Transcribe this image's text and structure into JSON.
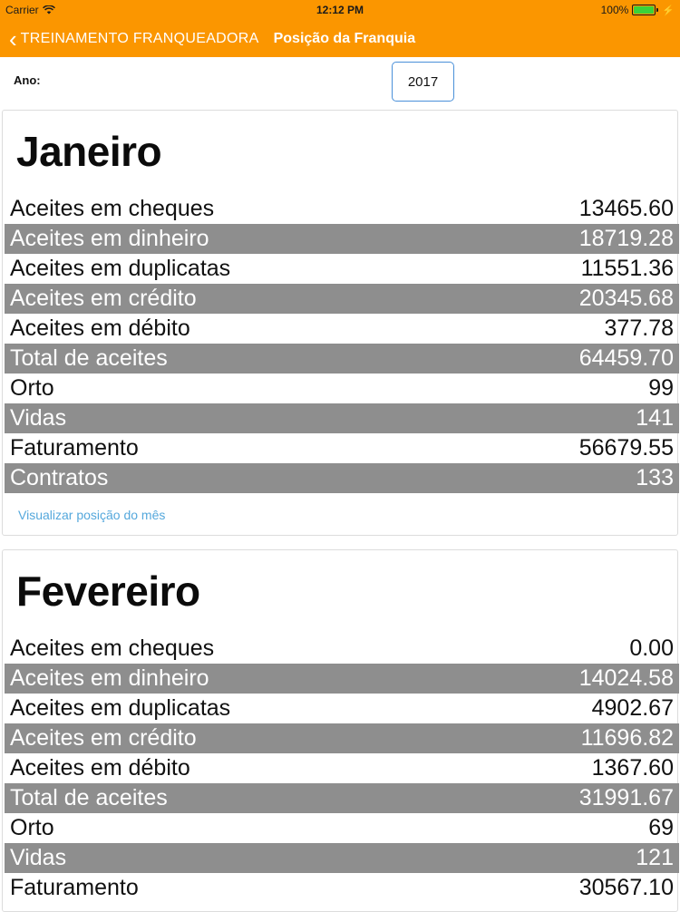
{
  "status": {
    "carrier": "Carrier",
    "time": "12:12 PM",
    "battery": "100%"
  },
  "nav": {
    "back_label": "TREINAMENTO FRANQUEADORA",
    "title": "Posição da Franquia"
  },
  "year": {
    "label": "Ano:",
    "value": "2017"
  },
  "months": [
    {
      "name": "Janeiro",
      "rows": [
        {
          "label": "Aceites em cheques",
          "value": "13465.60"
        },
        {
          "label": "Aceites em dinheiro",
          "value": "18719.28"
        },
        {
          "label": "Aceites em duplicatas",
          "value": "11551.36"
        },
        {
          "label": "Aceites em crédito",
          "value": "20345.68"
        },
        {
          "label": "Aceites em débito",
          "value": "377.78"
        },
        {
          "label": "Total de aceites",
          "value": "64459.70"
        },
        {
          "label": "Orto",
          "value": "99"
        },
        {
          "label": "Vidas",
          "value": "141"
        },
        {
          "label": "Faturamento",
          "value": "56679.55"
        },
        {
          "label": "Contratos",
          "value": "133"
        }
      ],
      "link": "Visualizar posição do mês"
    },
    {
      "name": "Fevereiro",
      "rows": [
        {
          "label": "Aceites em cheques",
          "value": "0.00"
        },
        {
          "label": "Aceites em dinheiro",
          "value": "14024.58"
        },
        {
          "label": "Aceites em duplicatas",
          "value": "4902.67"
        },
        {
          "label": "Aceites em crédito",
          "value": "11696.82"
        },
        {
          "label": "Aceites em débito",
          "value": "1367.60"
        },
        {
          "label": "Total de aceites",
          "value": "31991.67"
        },
        {
          "label": "Orto",
          "value": "69"
        },
        {
          "label": "Vidas",
          "value": "121"
        },
        {
          "label": "Faturamento",
          "value": "30567.10"
        }
      ]
    }
  ],
  "colors": {
    "accent": "#fb9600",
    "row_shade": "#8e8e8e",
    "link": "#55a8dc"
  }
}
